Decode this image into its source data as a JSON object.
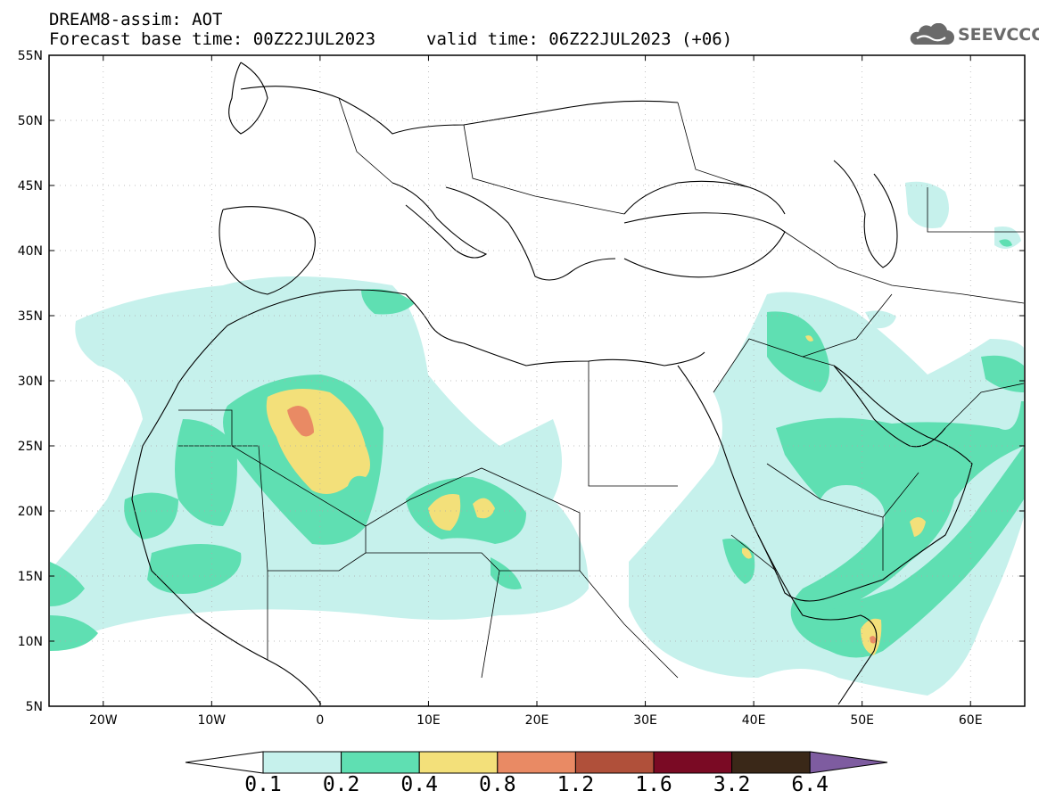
{
  "header": {
    "title_line1": "DREAM8-assim: AOT",
    "title_line2": "Forecast base time: 00Z22JUL2023",
    "valid_time": "valid time: 06Z22JUL2023 (+06)",
    "logo_text": "SEEVCCC"
  },
  "map": {
    "lon_labels": [
      "20W",
      "10W",
      "0",
      "10E",
      "20E",
      "30E",
      "40E",
      "50E",
      "60E"
    ],
    "lat_labels": [
      "55N",
      "50N",
      "45N",
      "40N",
      "35N",
      "30N",
      "25N",
      "20N",
      "15N",
      "10N",
      "5N"
    ],
    "lon_range": [
      -25,
      65
    ],
    "lat_range": [
      5,
      55
    ]
  },
  "colorbar": {
    "labels": [
      "0.1",
      "0.2",
      "0.4",
      "0.8",
      "1.2",
      "1.6",
      "3.2",
      "6.4"
    ],
    "colors": [
      "#c6f1ec",
      "#5fdfb2",
      "#f3e07a",
      "#e98a64",
      "#b0503a",
      "#7a0a24",
      "#3a2818"
    ],
    "under_color": "#ffffff",
    "over_color": "#7e5ca0"
  }
}
